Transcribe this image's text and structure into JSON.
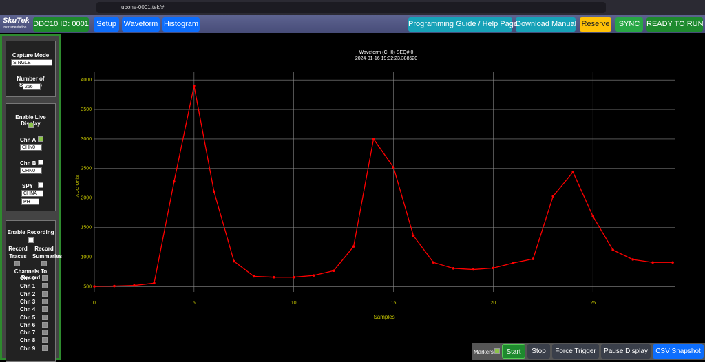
{
  "browser": {
    "url": "ubone-0001.tek/#"
  },
  "navbar": {
    "logo": "SkuTek",
    "logo_sub": "Instrumentation",
    "device": "DDC10 ID: 0001",
    "tabs": [
      "Setup",
      "Waveform",
      "Histogram"
    ],
    "right_buttons": [
      "Programming Guide / Help Pages",
      "Download Manual",
      "Reserve",
      "SYNC",
      "READY TO RUN"
    ]
  },
  "sidebar": {
    "capture_mode_label": "Capture Mode",
    "capture_mode": "SINGLE",
    "samples_label": "Number of Samples",
    "samples": "256",
    "live_label": "Enable Live Display",
    "chn_a_label": "Chn A",
    "chn_a": "CHN0",
    "chn_b_label": "Chn B",
    "chn_b": "CHN0",
    "spy_label": "SPY",
    "spy_chn": "CHNA",
    "spy_mode": "PH",
    "recording_label": "Enable Recording",
    "record_traces": "Record Traces",
    "record_summaries": "Record Summaries",
    "channels_label": "Channels To Record",
    "channels": [
      "Chn 0",
      "Chn 1",
      "Chn 2",
      "Chn 3",
      "Chn 4",
      "Chn 5",
      "Chn 6",
      "Chn 7",
      "Chn 8",
      "Chn 9"
    ]
  },
  "chart_data": {
    "type": "line",
    "title": "Waveform (CH0) SEQ# 0",
    "subtitle": "2024-01-16 19:32:23.388520",
    "x_label": "Samples",
    "y_label": "ADC Units",
    "x": [
      0,
      1,
      2,
      3,
      4,
      5,
      6,
      7,
      8,
      9,
      10,
      11,
      12,
      13,
      14,
      15,
      16,
      17,
      18,
      19,
      20,
      21,
      22,
      23,
      24,
      25,
      26,
      27,
      28,
      29
    ],
    "series": [
      {
        "name": "CH0",
        "color": "#ff0000",
        "values": [
          505,
          510,
          520,
          560,
          2280,
          3900,
          2110,
          930,
          675,
          660,
          660,
          690,
          770,
          1180,
          3000,
          2520,
          1360,
          910,
          810,
          790,
          815,
          900,
          970,
          2030,
          2440,
          1690,
          1120,
          960,
          910,
          910
        ]
      }
    ],
    "xlim": [
      0,
      29.1
    ],
    "ylim": [
      400,
      4130
    ],
    "xticks": [
      0,
      5,
      10,
      15,
      20,
      25
    ],
    "yticks": [
      500,
      1000,
      1500,
      2000,
      2500,
      3000,
      3500,
      4000
    ],
    "grid": true,
    "text_color": "#c8c800",
    "grid_color": "#8a8a8a"
  },
  "toolbar": {
    "markers": "Markers",
    "buttons": [
      "Start",
      "Stop",
      "Force Trigger",
      "Pause Display",
      "CSV Snapshot"
    ]
  }
}
